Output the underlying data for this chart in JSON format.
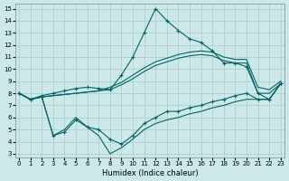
{
  "xlabel": "Humidex (Indice chaleur)",
  "xlim": [
    -0.3,
    23.3
  ],
  "ylim": [
    2.7,
    15.4
  ],
  "xticks": [
    0,
    1,
    2,
    3,
    4,
    5,
    6,
    7,
    8,
    9,
    10,
    11,
    12,
    13,
    14,
    15,
    16,
    17,
    18,
    19,
    20,
    21,
    22,
    23
  ],
  "yticks": [
    3,
    4,
    5,
    6,
    7,
    8,
    9,
    10,
    11,
    12,
    13,
    14,
    15
  ],
  "bg_color": "#cce8e8",
  "grid_color": "#aacccc",
  "line_color": "#006666",
  "spike_x": [
    0,
    1,
    2,
    3,
    4,
    5,
    6,
    7,
    8,
    9,
    10,
    11,
    12,
    13,
    14,
    15,
    16,
    17,
    18,
    19,
    20,
    21,
    22,
    23
  ],
  "spike_y": [
    8,
    7.5,
    7.8,
    8.0,
    8.2,
    8.4,
    8.5,
    8.4,
    8.3,
    9.5,
    11.0,
    13.0,
    15.0,
    14.0,
    13.2,
    12.5,
    12.2,
    11.5,
    10.5,
    10.5,
    10.2,
    8.0,
    7.5,
    8.8
  ],
  "upper1_x": [
    0,
    1,
    2,
    3,
    4,
    5,
    6,
    7,
    8,
    9,
    10,
    11,
    12,
    13,
    14,
    15,
    16,
    17,
    18,
    19,
    20,
    21,
    22,
    23
  ],
  "upper1_y": [
    8,
    7.5,
    7.7,
    7.8,
    7.9,
    8.0,
    8.1,
    8.2,
    8.3,
    8.7,
    9.2,
    9.8,
    10.3,
    10.6,
    10.9,
    11.1,
    11.2,
    11.1,
    10.7,
    10.5,
    10.5,
    8.0,
    8.0,
    8.8
  ],
  "upper2_x": [
    0,
    1,
    2,
    3,
    4,
    5,
    6,
    7,
    8,
    9,
    10,
    11,
    12,
    13,
    14,
    15,
    16,
    17,
    18,
    19,
    20,
    21,
    22,
    23
  ],
  "upper2_y": [
    8,
    7.5,
    7.7,
    7.8,
    7.9,
    8.0,
    8.1,
    8.2,
    8.5,
    8.9,
    9.5,
    10.1,
    10.6,
    10.9,
    11.2,
    11.4,
    11.5,
    11.4,
    11.0,
    10.8,
    10.8,
    8.5,
    8.3,
    9.0
  ],
  "lower1_x": [
    0,
    1,
    2,
    3,
    4,
    5,
    6,
    7,
    8,
    9,
    10,
    11,
    12,
    13,
    14,
    15,
    16,
    17,
    18,
    19,
    20,
    21,
    22,
    23
  ],
  "lower1_y": [
    8,
    7.5,
    7.7,
    4.5,
    4.8,
    5.8,
    5.2,
    5.0,
    4.2,
    3.8,
    4.5,
    5.5,
    6.0,
    6.5,
    6.5,
    6.8,
    7.0,
    7.3,
    7.5,
    7.8,
    8.0,
    7.5,
    7.5,
    8.8
  ],
  "lower2_x": [
    0,
    1,
    2,
    3,
    4,
    5,
    6,
    7,
    8,
    9,
    10,
    11,
    12,
    13,
    14,
    15,
    16,
    17,
    18,
    19,
    20,
    21,
    22,
    23
  ],
  "lower2_y": [
    8,
    7.5,
    7.7,
    4.5,
    5.0,
    6.0,
    5.2,
    4.5,
    3.0,
    3.5,
    4.2,
    5.0,
    5.5,
    5.8,
    6.0,
    6.3,
    6.5,
    6.8,
    7.0,
    7.3,
    7.5,
    7.5,
    7.5,
    8.8
  ]
}
